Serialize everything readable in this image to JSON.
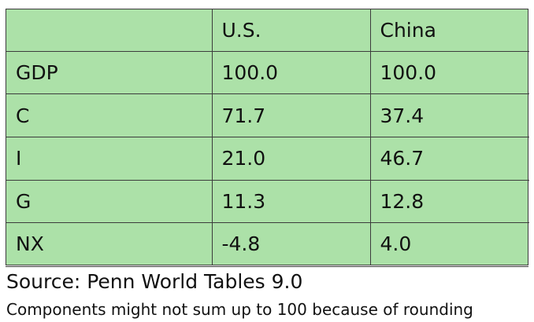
{
  "table": {
    "columns": [
      "",
      "U.S.",
      "China"
    ],
    "rows": [
      {
        "label": "GDP",
        "us": "100.0",
        "china": "100.0"
      },
      {
        "label": "C",
        "us": "71.7",
        "china": "37.4"
      },
      {
        "label": "I",
        "us": "21.0",
        "china": "46.7"
      },
      {
        "label": "G",
        "us": "11.3",
        "china": "12.8"
      },
      {
        "label": "NX",
        "us": "-4.8",
        "china": "4.0"
      }
    ]
  },
  "source": "Source: Penn World Tables 9.0",
  "note": "Components might not sum up to 100 because of rounding",
  "colors": {
    "table_background": "#ace1a8",
    "border": "#3c3c3c",
    "text": "#111111"
  }
}
